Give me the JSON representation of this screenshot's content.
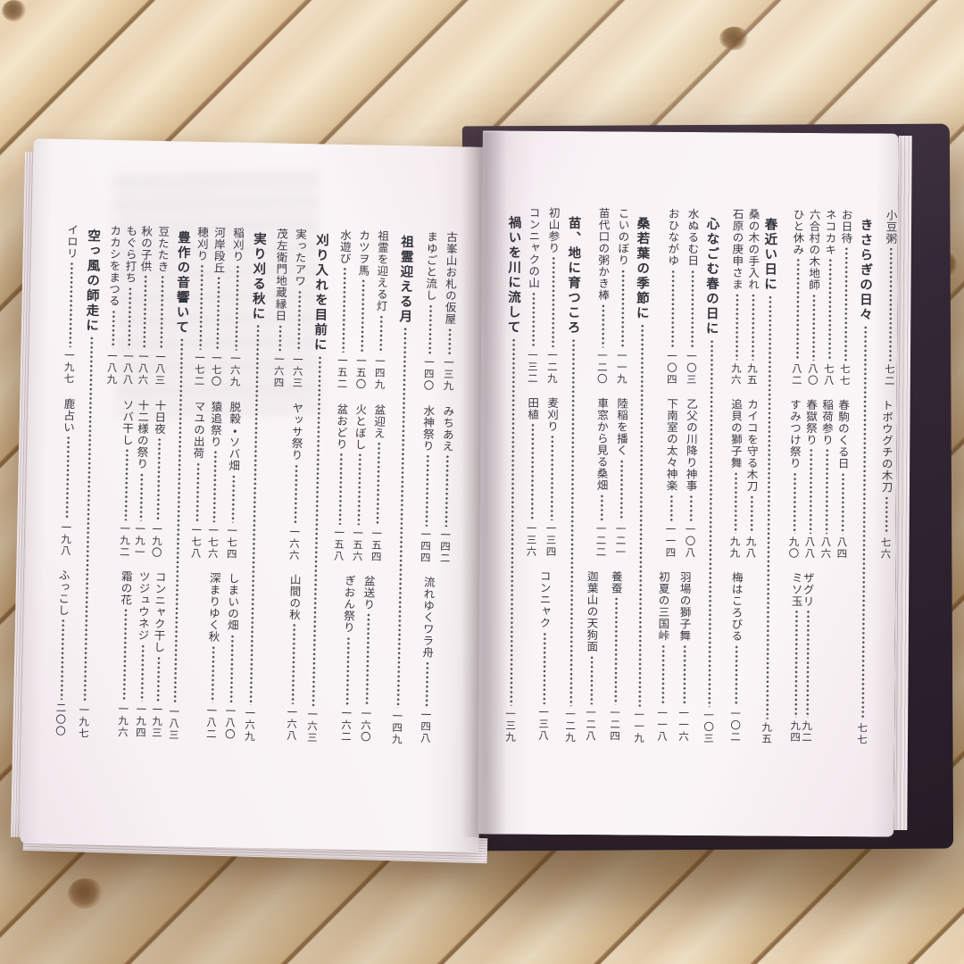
{
  "palette": {
    "wood": "#e8d4b2",
    "plank_gap": "#8a6a46",
    "page": "#f9f3f6",
    "cover": "#342837",
    "text": "#3a3a42",
    "leader_dots": "#4c4c55"
  },
  "book": {
    "right_page": {
      "leading_entries": [
        {
          "label": "小豆粥",
          "page": "七二",
          "band": 1
        },
        {
          "label": "トボウグチの木刀",
          "page": "七六",
          "band": 2
        }
      ],
      "sections": [
        {
          "title": "きさらぎの日々",
          "page": "七七",
          "entries": [
            {
              "label": "お日待",
              "page": "七七",
              "band": 1
            },
            {
              "label": "ネコカキ",
              "page": "七八",
              "band": 1
            },
            {
              "label": "六合村の木地師",
              "page": "八〇",
              "band": 1
            },
            {
              "label": "ひと休み",
              "page": "八二",
              "band": 1
            },
            {
              "label": "春駒のくる日",
              "page": "八四",
              "band": 2
            },
            {
              "label": "稲荷参り",
              "page": "八六",
              "band": 2
            },
            {
              "label": "春獄祭り",
              "page": "八八",
              "band": 2
            },
            {
              "label": "すみつけ祭り",
              "page": "九〇",
              "band": 2
            },
            {
              "label": "ザグリ",
              "page": "九二",
              "band": 3
            },
            {
              "label": "ミソ玉",
              "page": "九四",
              "band": 3
            }
          ]
        },
        {
          "title": "春近い日に",
          "page": "九五",
          "entries": [
            {
              "label": "桑の木の手入れ",
              "page": "九五",
              "band": 1
            },
            {
              "label": "石原の庚申さま",
              "page": "九六",
              "band": 1
            },
            {
              "label": "カイコを守る木刀",
              "page": "九八",
              "band": 2
            },
            {
              "label": "追貝の獅子舞",
              "page": "九九",
              "band": 2
            },
            {
              "label": "梅はころびる",
              "page": "一〇二",
              "band": 3
            }
          ]
        },
        {
          "title": "心なごむ春の日に",
          "page": "一〇三",
          "entries": [
            {
              "label": "水ぬるむ日",
              "page": "一〇三",
              "band": 1
            },
            {
              "label": "おひながゆ",
              "page": "一〇四",
              "band": 1
            },
            {
              "label": "乙父の川降り神事",
              "page": "一〇八",
              "band": 2
            },
            {
              "label": "下南室の太々神楽",
              "page": "一一四",
              "band": 2
            },
            {
              "label": "羽場の獅子舞",
              "page": "一一六",
              "band": 3
            },
            {
              "label": "初夏の三国峠",
              "page": "一一八",
              "band": 3
            }
          ]
        },
        {
          "title": "桑若葉の季節に",
          "page": "一一九",
          "entries": [
            {
              "label": "こいのぼり",
              "page": "一一九",
              "band": 1
            },
            {
              "label": "苗代口の粥かき棒",
              "page": "一二〇",
              "band": 1
            },
            {
              "label": "陸稲を播く",
              "page": "一二一",
              "band": 2
            },
            {
              "label": "車窓から見る桑畑",
              "page": "一二二",
              "band": 2
            },
            {
              "label": "養蚕",
              "page": "一二四",
              "band": 3
            },
            {
              "label": "迦葉山の天狗面",
              "page": "一二八",
              "band": 3
            }
          ]
        },
        {
          "title": "苗、地に育つころ",
          "page": "一二九",
          "entries": [
            {
              "label": "初山参り",
              "page": "一二九",
              "band": 1
            },
            {
              "label": "コンニャクの山",
              "page": "一三二",
              "band": 1
            },
            {
              "label": "麦刈り",
              "page": "一三四",
              "band": 2
            },
            {
              "label": "田植",
              "page": "一三六",
              "band": 2
            },
            {
              "label": "コンニャク",
              "page": "一三八",
              "band": 3
            }
          ]
        },
        {
          "title": "禍いを川に流して",
          "page": "一三九",
          "entries": []
        }
      ]
    },
    "left_page": {
      "leading_entries": [
        {
          "label": "古峯山お札の仮屋",
          "page": "一三九",
          "band": 1
        },
        {
          "label": "まゆごと流し",
          "page": "一四〇",
          "band": 1
        },
        {
          "label": "みちあえ",
          "page": "一四二",
          "band": 2
        },
        {
          "label": "水神祭り",
          "page": "一四四",
          "band": 2
        },
        {
          "label": "流れゆくワラ舟",
          "page": "一四八",
          "band": 3
        }
      ],
      "sections": [
        {
          "title": "祖霊迎える月",
          "page": "一四九",
          "entries": [
            {
              "label": "祖霊を迎える灯",
              "page": "一四九",
              "band": 1
            },
            {
              "label": "カツヲ馬",
              "page": "一五〇",
              "band": 1
            },
            {
              "label": "水遊び",
              "page": "一五二",
              "band": 1
            },
            {
              "label": "盆迎え",
              "page": "一五四",
              "band": 2
            },
            {
              "label": "火とぼし",
              "page": "一五六",
              "band": 2
            },
            {
              "label": "盆おどり",
              "page": "一五八",
              "band": 2
            },
            {
              "label": "盆送り",
              "page": "一六〇",
              "band": 3
            },
            {
              "label": "ぎおん祭り",
              "page": "一六二",
              "band": 3
            }
          ]
        },
        {
          "title": "刈り入れを目前に",
          "page": "一六三",
          "entries": [
            {
              "label": "実ったアワ",
              "page": "一六三",
              "band": 1
            },
            {
              "label": "茂左衛門地蔵縁日",
              "page": "一六四",
              "band": 1
            },
            {
              "label": "ヤッサ祭り",
              "page": "一六六",
              "band": 2
            },
            {
              "label": "山間の秋",
              "page": "一六八",
              "band": 3
            }
          ]
        },
        {
          "title": "実り刈る秋に",
          "page": "一六九",
          "entries": [
            {
              "label": "稲刈り",
              "page": "一六九",
              "band": 1
            },
            {
              "label": "河岸段丘",
              "page": "一七〇",
              "band": 1
            },
            {
              "label": "穂刈り",
              "page": "一七二",
              "band": 1
            },
            {
              "label": "脱穀・ソバ畑",
              "page": "一七四",
              "band": 2
            },
            {
              "label": "猿追祭り",
              "page": "一七六",
              "band": 2
            },
            {
              "label": "マユの出荷",
              "page": "一七八",
              "band": 2
            },
            {
              "label": "しまいの畑",
              "page": "一八〇",
              "band": 3
            },
            {
              "label": "深まりゆく秋",
              "page": "一八二",
              "band": 3
            }
          ]
        },
        {
          "title": "豊作の音響いて",
          "page": "一八三",
          "entries": [
            {
              "label": "豆たたき",
              "page": "一八三",
              "band": 1
            },
            {
              "label": "秋の子供",
              "page": "一八六",
              "band": 1
            },
            {
              "label": "もぐら打ち",
              "page": "一八八",
              "band": 1
            },
            {
              "label": "カカシをまつる",
              "page": "一八九",
              "band": 1
            },
            {
              "label": "十日夜",
              "page": "一九〇",
              "band": 2
            },
            {
              "label": "十二様の祭り",
              "page": "一九一",
              "band": 2
            },
            {
              "label": "ソバ干し",
              "page": "一九二",
              "band": 2
            },
            {
              "label": "コンニャク干し",
              "page": "一九三",
              "band": 3
            },
            {
              "label": "ツジュウネジ",
              "page": "一九四",
              "band": 3
            },
            {
              "label": "霜の花",
              "page": "一九六",
              "band": 3
            }
          ]
        },
        {
          "title": "空っ風の師走に",
          "page": "一九七",
          "entries": [
            {
              "label": "イロリ",
              "page": "一九七",
              "band": 1
            },
            {
              "label": "鹿占い",
              "page": "一九八",
              "band": 2
            },
            {
              "label": "ふっこし",
              "page": "二〇〇",
              "band": 3
            }
          ]
        }
      ]
    }
  }
}
